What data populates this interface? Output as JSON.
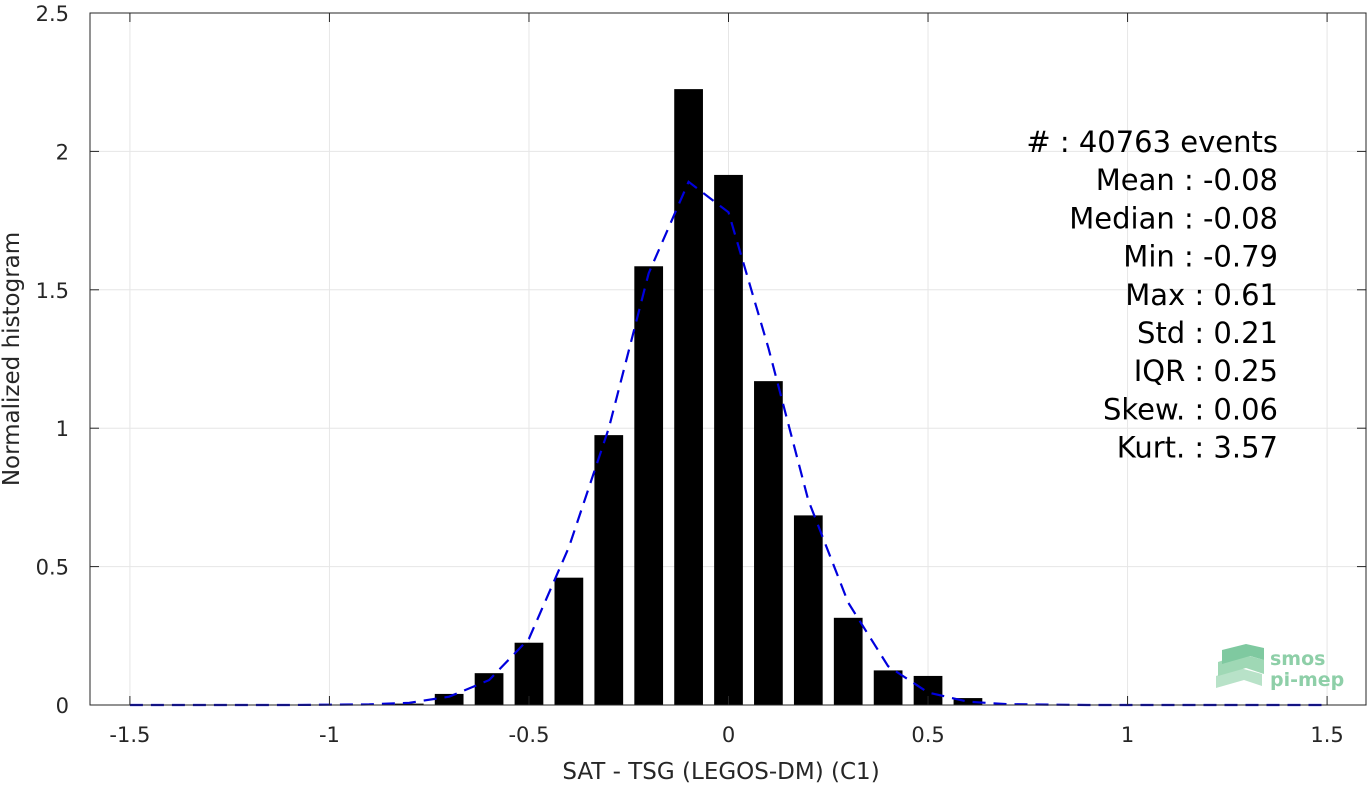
{
  "chart_data": {
    "type": "bar",
    "xlabel": "SAT - TSG (LEGOS-DM) (C1)",
    "ylabel": "Normalized histogram",
    "xlim": [
      -1.6,
      1.6
    ],
    "ylim": [
      0,
      2.5
    ],
    "xticks": [
      -1.5,
      -1,
      -0.5,
      0,
      0.5,
      1,
      1.5
    ],
    "xtick_labels": [
      "-1.5",
      "-1",
      "-0.5",
      "0",
      "0.5",
      "1",
      "1.5"
    ],
    "yticks": [
      0,
      0.5,
      1,
      1.5,
      2,
      2.5
    ],
    "ytick_labels": [
      "0",
      "0.5",
      "1",
      "1.5",
      "2",
      "2.5"
    ],
    "grid": true,
    "bars": {
      "x": [
        -0.8,
        -0.7,
        -0.6,
        -0.5,
        -0.4,
        -0.3,
        -0.2,
        -0.1,
        0.0,
        0.1,
        0.2,
        0.3,
        0.4,
        0.5,
        0.6
      ],
      "values": [
        0.005,
        0.04,
        0.115,
        0.225,
        0.46,
        0.975,
        1.585,
        2.225,
        1.915,
        1.17,
        0.685,
        0.315,
        0.125,
        0.105,
        0.025
      ],
      "color": "#000000"
    },
    "fit_curve": {
      "style": "dashed",
      "color": "#0000dd",
      "x": [
        -1.5,
        -1.3,
        -1.1,
        -0.9,
        -0.8,
        -0.7,
        -0.6,
        -0.5,
        -0.4,
        -0.3,
        -0.2,
        -0.1,
        0.0,
        0.1,
        0.2,
        0.3,
        0.4,
        0.5,
        0.6,
        0.7,
        0.9,
        1.1,
        1.3,
        1.5
      ],
      "y": [
        0,
        0,
        0,
        0.002,
        0.008,
        0.03,
        0.09,
        0.24,
        0.57,
        1.0,
        1.56,
        1.89,
        1.78,
        1.29,
        0.74,
        0.37,
        0.14,
        0.045,
        0.012,
        0.003,
        0,
        0,
        0,
        0
      ]
    },
    "annotations": [
      "#  : 40763 events",
      "Mean : -0.08",
      "Median : -0.08",
      "Min : -0.79",
      "Max : 0.61",
      "Std : 0.21",
      "IQR : 0.25",
      "Skew. : 0.06",
      "Kurt. : 3.57"
    ],
    "logo": [
      "smos",
      "pi-mep"
    ]
  }
}
